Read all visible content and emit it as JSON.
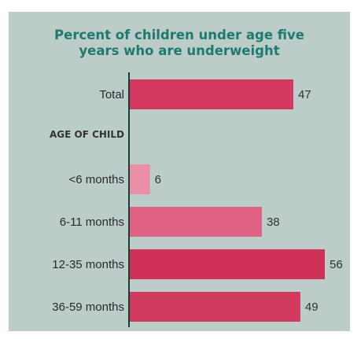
{
  "chart_data": {
    "type": "bar",
    "orientation": "horizontal",
    "title": "Percent of children under age five\nyears who are underweight",
    "group_heading": "AGE OF CHILD",
    "categories": [
      "Total",
      "<6 months",
      "6-11 months",
      "12-35 months",
      "36-59 months"
    ],
    "values": [
      47,
      6,
      38,
      56,
      49
    ],
    "xlim": [
      0,
      56
    ],
    "colors": {
      "Total": "#d4375f",
      "<6 months": "#ea8fa6",
      "6-11 months": "#df6285",
      "12-35 months": "#cf3159",
      "36-59 months": "#d03a5f"
    },
    "axis_color": "#14403a",
    "background": "#bcccc8",
    "title_color": "#1f7a6e"
  }
}
